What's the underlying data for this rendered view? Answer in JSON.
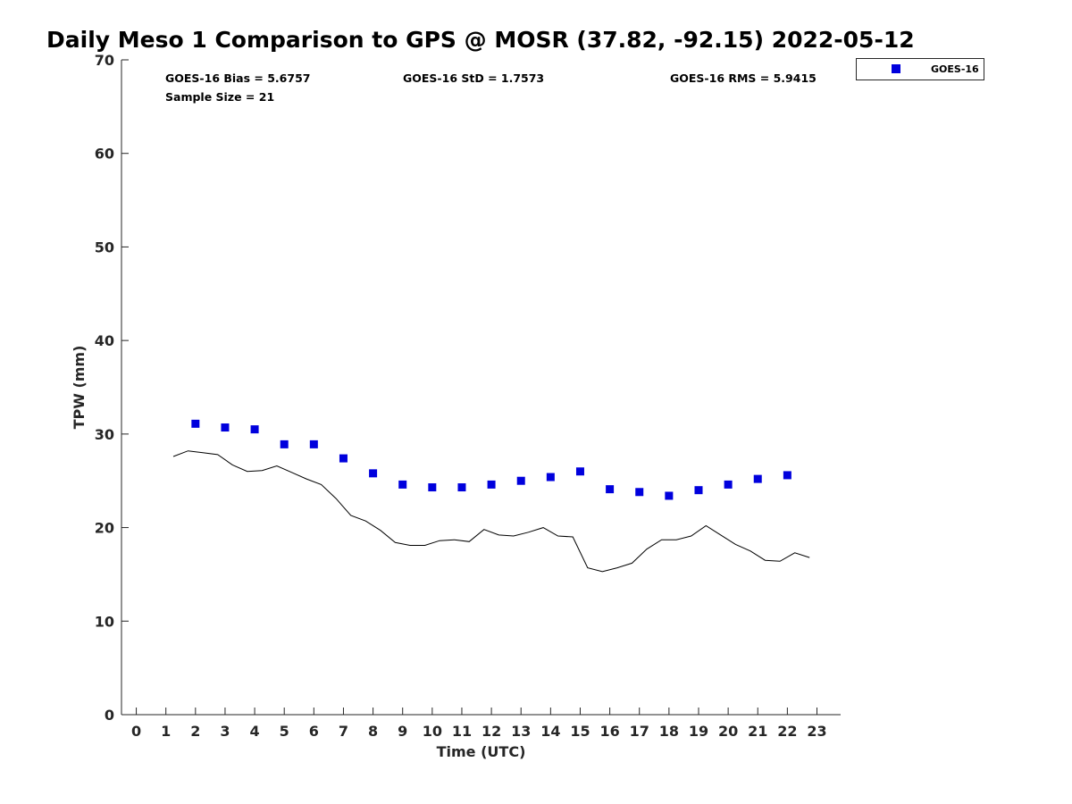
{
  "title": "Daily Meso 1 Comparison to GPS @ MOSR (37.82, -92.15) 2022-05-12",
  "stats": {
    "bias": "GOES-16 Bias = 5.6757",
    "std": "GOES-16 StD = 1.7573",
    "rms": "GOES-16 RMS = 5.9415",
    "sample": "Sample Size = 21"
  },
  "colors": {
    "goes": "#0000dd",
    "gps_line": "#000000"
  },
  "chart_data": {
    "type": "scatter",
    "title": "Daily Meso 1 Comparison to GPS @ MOSR (37.82, -92.15) 2022-05-12",
    "xlabel": "Time (UTC)",
    "ylabel": "TPW (mm)",
    "xlim": [
      -0.5,
      23.8
    ],
    "ylim": [
      0,
      70
    ],
    "xticks": [
      0,
      1,
      2,
      3,
      4,
      5,
      6,
      7,
      8,
      9,
      10,
      11,
      12,
      13,
      14,
      15,
      16,
      17,
      18,
      19,
      20,
      21,
      22,
      23
    ],
    "yticks": [
      0,
      10,
      20,
      30,
      40,
      50,
      60,
      70
    ],
    "grid": false,
    "legend_position": "top-right",
    "series": [
      {
        "name": "GOES-16",
        "marker": "square",
        "x": [
          2,
          3,
          4,
          5,
          6,
          7,
          8,
          9,
          10,
          11,
          12,
          13,
          14,
          15,
          16,
          17,
          18,
          19,
          20,
          21,
          22
        ],
        "y": [
          31.1,
          30.7,
          30.5,
          28.9,
          28.9,
          27.4,
          25.8,
          24.6,
          24.3,
          24.3,
          24.6,
          25.0,
          25.4,
          26.0,
          24.1,
          23.8,
          23.4,
          24.0,
          24.6,
          25.2,
          25.6
        ]
      },
      {
        "line": true,
        "x": [
          1.25,
          1.75,
          2.25,
          2.75,
          3.25,
          3.75,
          4.25,
          4.75,
          5.25,
          5.75,
          6.25,
          6.75,
          7.25,
          7.75,
          8.25,
          8.75,
          9.25,
          9.75,
          10.25,
          10.75,
          11.25,
          11.75,
          12.25,
          12.75,
          13.25,
          13.75,
          14.25,
          14.75,
          15.25,
          15.75,
          16.25,
          16.75,
          17.25,
          17.75,
          18.25,
          18.75,
          19.25,
          19.75,
          20.25,
          20.75,
          21.25,
          21.75,
          22.25,
          22.75
        ],
        "y": [
          27.6,
          28.2,
          28.0,
          27.8,
          26.7,
          26.0,
          26.1,
          26.6,
          25.9,
          25.2,
          24.6,
          23.1,
          21.3,
          20.7,
          19.7,
          18.4,
          18.1,
          18.1,
          18.6,
          18.7,
          18.5,
          19.8,
          19.2,
          19.1,
          19.5,
          20.0,
          19.1,
          19.0,
          15.7,
          15.3,
          15.7,
          16.2,
          17.7,
          18.7,
          18.7,
          19.1,
          20.2,
          19.2,
          18.2,
          17.5,
          16.5,
          16.4,
          17.3,
          16.8
        ]
      }
    ]
  }
}
